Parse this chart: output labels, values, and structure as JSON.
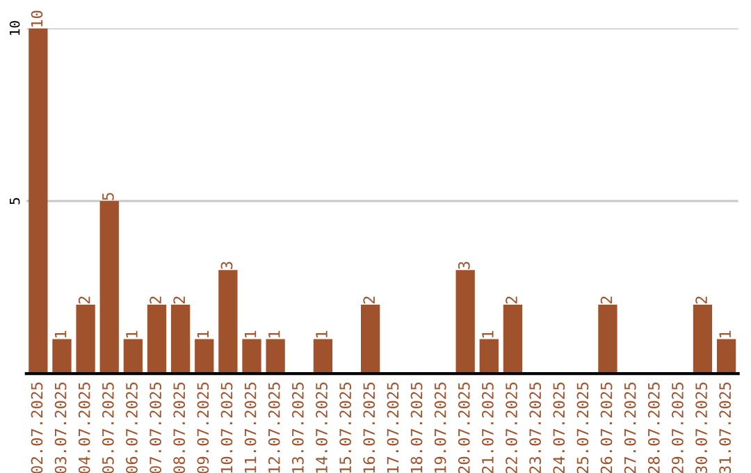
{
  "chart_data": {
    "type": "bar",
    "categories": [
      "02.07.2025",
      "03.07.2025",
      "04.07.2025",
      "05.07.2025",
      "06.07.2025",
      "07.07.2025",
      "08.07.2025",
      "09.07.2025",
      "10.07.2025",
      "11.07.2025",
      "12.07.2025",
      "13.07.2025",
      "14.07.2025",
      "15.07.2025",
      "16.07.2025",
      "17.07.2025",
      "18.07.2025",
      "19.07.2025",
      "20.07.2025",
      "21.07.2025",
      "22.07.2025",
      "23.07.2025",
      "24.07.2025",
      "25.07.2025",
      "26.07.2025",
      "27.07.2025",
      "28.07.2025",
      "29.07.2025",
      "30.07.2025",
      "31.07.2025"
    ],
    "values": [
      10,
      1,
      2,
      5,
      1,
      2,
      2,
      1,
      3,
      1,
      1,
      0,
      1,
      0,
      2,
      0,
      0,
      0,
      3,
      1,
      2,
      0,
      0,
      0,
      2,
      0,
      0,
      0,
      2,
      1
    ],
    "value_labels": [
      "10",
      "1",
      "2",
      "5",
      "1",
      "2",
      "2",
      "1",
      "3",
      "1",
      "1",
      null,
      "1",
      null,
      "2",
      null,
      null,
      null,
      "3",
      "1",
      "2",
      null,
      null,
      null,
      "2",
      null,
      null,
      null,
      "2",
      "1"
    ],
    "color": "#a0522d",
    "ylim": [
      0,
      10
    ],
    "yticks": [
      5,
      10
    ],
    "grid": "y"
  }
}
